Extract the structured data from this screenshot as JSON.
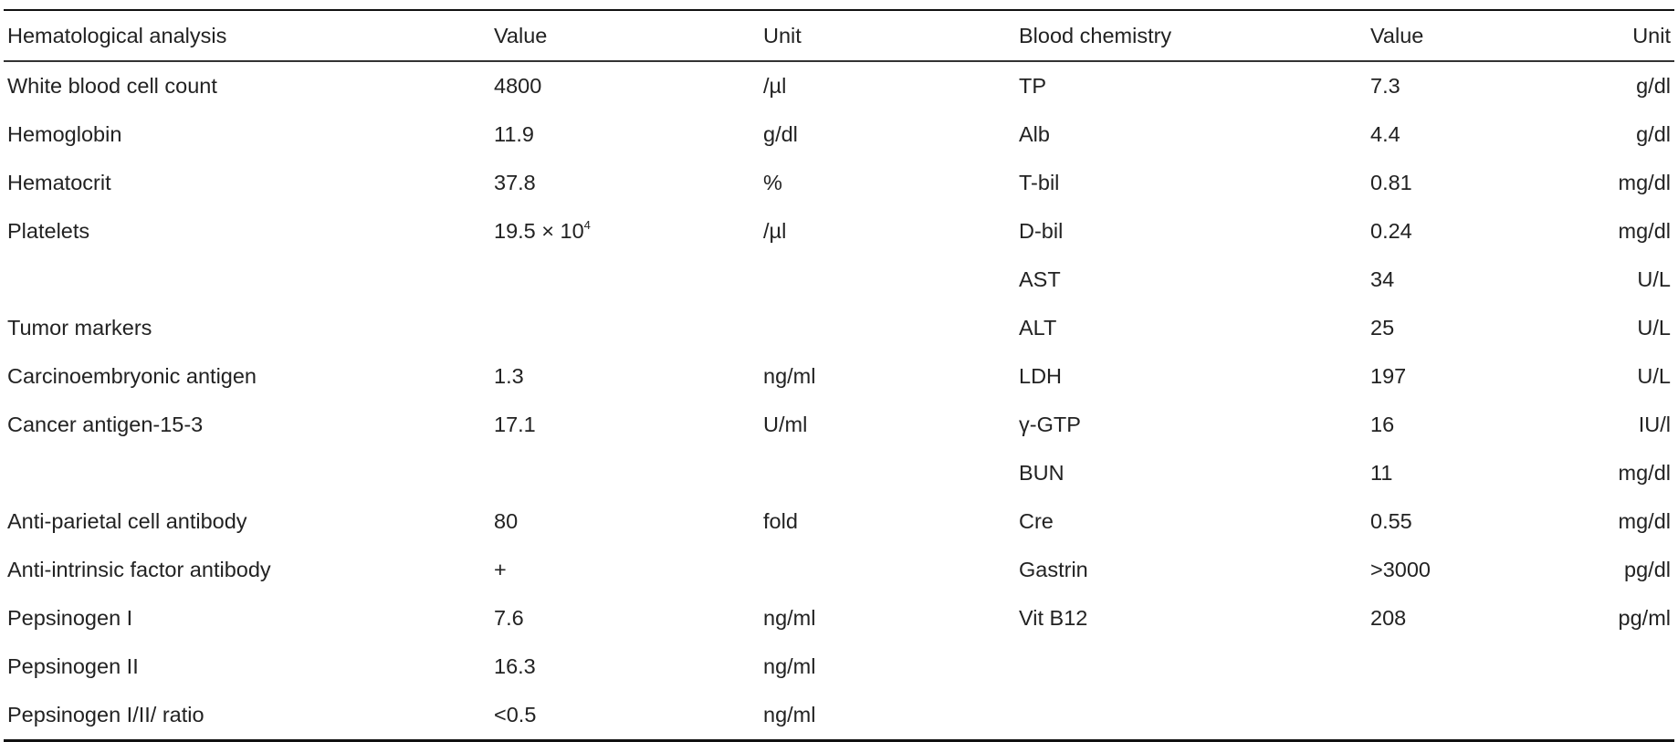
{
  "headers": {
    "hematological_analysis": "Hematological analysis",
    "value_left": "Value",
    "unit_left": "Unit",
    "blood_chemistry": "Blood chemistry",
    "value_right": "Value",
    "unit_right": "Unit"
  },
  "rows": [
    {
      "left_name": "White blood cell count",
      "left_value": "4800",
      "left_unit": "/µl",
      "right_name": "TP",
      "right_value": "7.3",
      "right_unit": "g/dl"
    },
    {
      "left_name": "Hemoglobin",
      "left_value": "11.9",
      "left_unit": "g/dl",
      "right_name": "Alb",
      "right_value": "4.4",
      "right_unit": "g/dl"
    },
    {
      "left_name": "Hematocrit",
      "left_value": "37.8",
      "left_unit": "%",
      "right_name": "T-bil",
      "right_value": "0.81",
      "right_unit": "mg/dl"
    },
    {
      "left_name": "Platelets",
      "left_value": "19.5 × 10",
      "left_value_sup": "4",
      "left_unit": "/µl",
      "right_name": "D-bil",
      "right_value": "0.24",
      "right_unit": "mg/dl"
    },
    {
      "left_name": "",
      "left_value": "",
      "left_unit": "",
      "right_name": "AST",
      "right_value": "34",
      "right_unit": "U/L"
    },
    {
      "left_name": "Tumor markers",
      "left_value": "",
      "left_unit": "",
      "right_name": "ALT",
      "right_value": "25",
      "right_unit": "U/L"
    },
    {
      "left_name": "Carcinoembryonic antigen",
      "left_value": "1.3",
      "left_unit": "ng/ml",
      "right_name": "LDH",
      "right_value": "197",
      "right_unit": "U/L"
    },
    {
      "left_name": "Cancer antigen-15-3",
      "left_value": "17.1",
      "left_unit": "U/ml",
      "right_name": "γ-GTP",
      "right_value": "16",
      "right_unit": "IU/l"
    },
    {
      "left_name": "",
      "left_value": "",
      "left_unit": "",
      "right_name": "BUN",
      "right_value": "11",
      "right_unit": "mg/dl"
    },
    {
      "left_name": "Anti-parietal cell antibody",
      "left_value": "80",
      "left_unit": "fold",
      "right_name": "Cre",
      "right_value": "0.55",
      "right_unit": "mg/dl"
    },
    {
      "left_name": "Anti-intrinsic factor antibody",
      "left_value": "+",
      "left_unit": "",
      "right_name": "Gastrin",
      "right_value": ">3000",
      "right_unit": "pg/dl"
    },
    {
      "left_name": "Pepsinogen I",
      "left_value": "7.6",
      "left_unit": "ng/ml",
      "right_name": "Vit B12",
      "right_value": "208",
      "right_unit": "pg/ml"
    },
    {
      "left_name": "Pepsinogen II",
      "left_value": "16.3",
      "left_unit": "ng/ml",
      "right_name": "",
      "right_value": "",
      "right_unit": ""
    },
    {
      "left_name": "Pepsinogen I/II/ ratio",
      "left_value": "<0.5",
      "left_unit": "ng/ml",
      "right_name": "",
      "right_value": "",
      "right_unit": ""
    }
  ]
}
